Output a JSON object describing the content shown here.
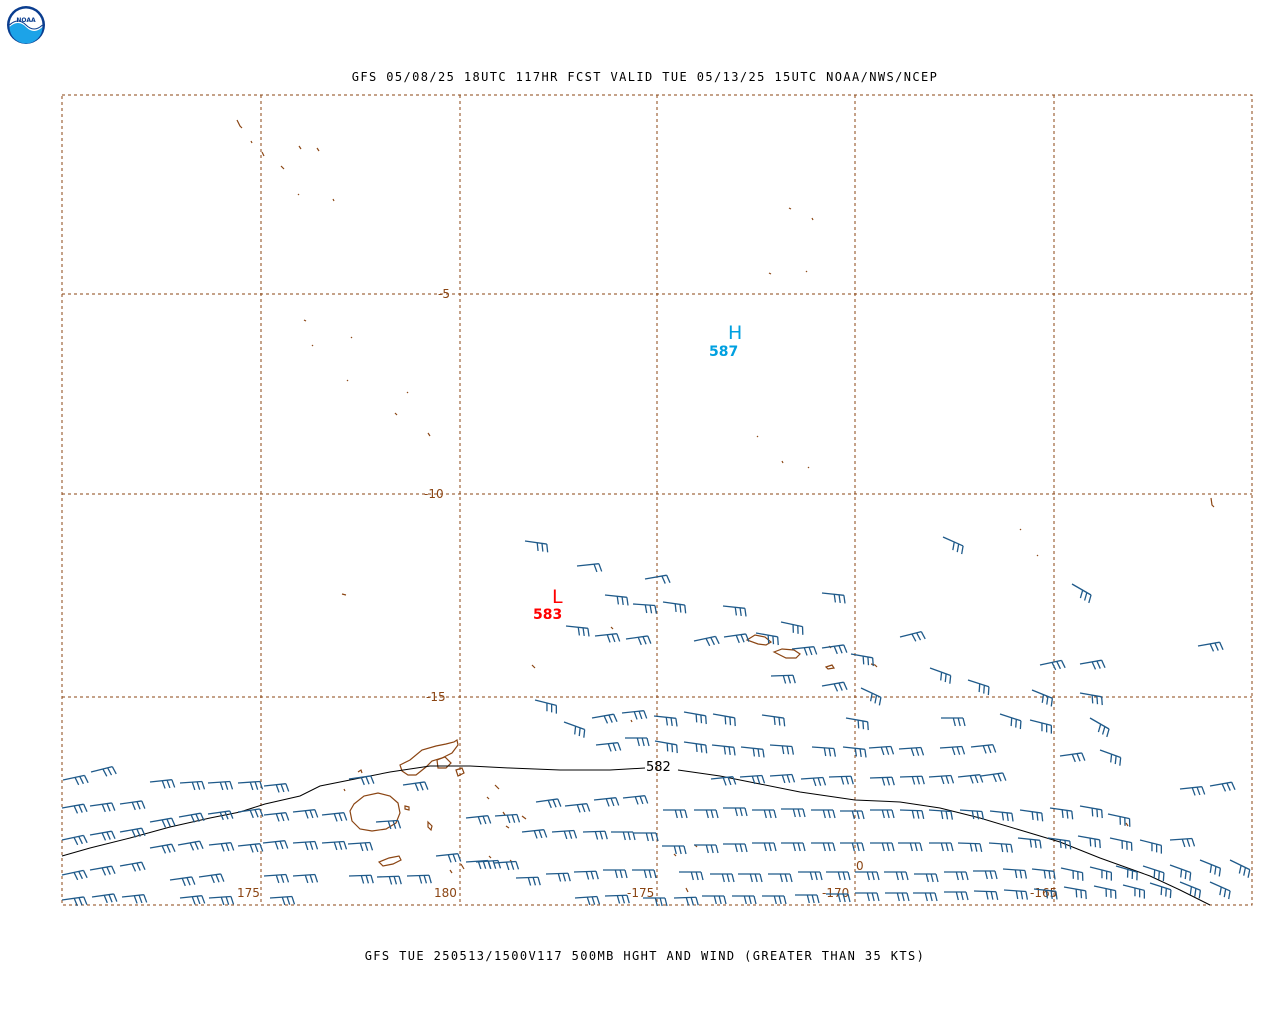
{
  "header": {
    "title": "GFS 05/08/25 18UTC 117HR FCST VALID TUE 05/13/25 15UTC NOAA/NWS/NCEP",
    "logo_icon": "noaa-logo-icon",
    "logo_text": "NOAA"
  },
  "footer": {
    "title": "GFS TUE 250513/1500V117 500MB HGHT AND WIND (GREATER THAN 35 KTS)"
  },
  "map": {
    "colors": {
      "grid": "#8b4513",
      "coastline": "#8b4513",
      "wind_barbs": "#1f5a8a",
      "contour": "#000000",
      "high": "#00a0e0",
      "low": "#ff0000"
    },
    "latitude_labels": [
      "-5",
      "-10",
      "-15"
    ],
    "longitude_labels": [
      "175",
      "180",
      "-175",
      "-170",
      "-165"
    ],
    "high_center": {
      "letter": "H",
      "value": "587"
    },
    "low_center": {
      "letter": "L",
      "value": "583"
    },
    "contour_label": "582",
    "stray_label": "0",
    "wind_barb_icon": "wind-barb-icon"
  }
}
